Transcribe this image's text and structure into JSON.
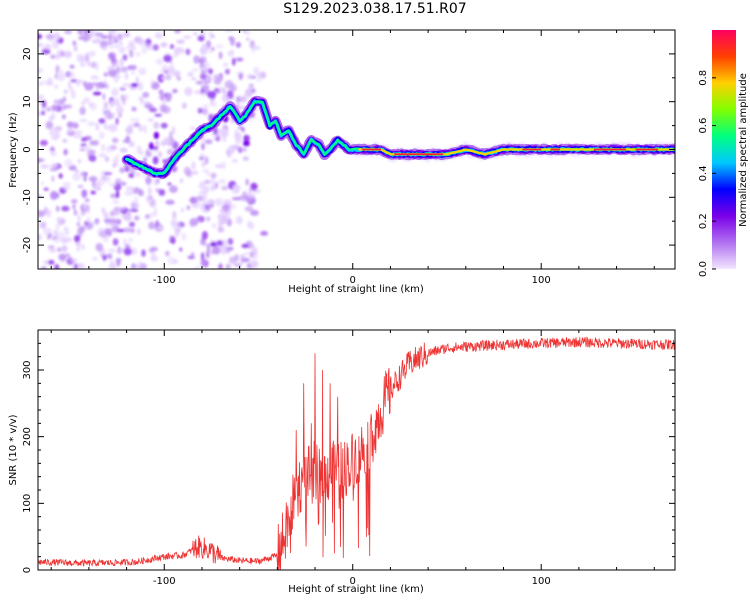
{
  "title": "S129.2023.038.17.51.R07",
  "chart_data": [
    {
      "type": "heatmap",
      "xlabel": "Height of straight line (km)",
      "ylabel": "Frequency (Hz)",
      "xlim": [
        -167,
        171
      ],
      "ylim": [
        -25,
        25
      ],
      "xticks": [
        -100,
        0,
        100
      ],
      "yticks": [
        -20,
        -10,
        0,
        10,
        20
      ],
      "colorbar": {
        "label": "Normalized spectral amplitude",
        "range": [
          0,
          1
        ],
        "ticks": [
          0.0,
          0.2,
          0.4,
          0.6,
          0.8
        ],
        "colors": [
          "#f2e6ff",
          "#b070f0",
          "#7a00e8",
          "#0000ff",
          "#00c8ff",
          "#00ff80",
          "#80ff00",
          "#ffd000",
          "#ff4000",
          "#ff0060"
        ]
      },
      "ridge": {
        "x": [
          -120,
          -110,
          -105,
          -100,
          -95,
          -90,
          -85,
          -80,
          -75,
          -70,
          -65,
          -60,
          -57,
          -52,
          -48,
          -44,
          -41,
          -38,
          -34,
          -30,
          -26,
          -22,
          -18,
          -15,
          -12,
          -8,
          -5,
          -2,
          0,
          5,
          10,
          15,
          20,
          30,
          40,
          50,
          60,
          70,
          80,
          90,
          100,
          110,
          120,
          130,
          140,
          150,
          160,
          171
        ],
        "y": [
          -2,
          -4,
          -5,
          -5,
          -2,
          0,
          2,
          4,
          5,
          7,
          9,
          6,
          7,
          10,
          10,
          5,
          6,
          3,
          4,
          1,
          -1,
          2,
          1,
          -1,
          0,
          2,
          1,
          0,
          0,
          0,
          0,
          0,
          -1,
          -1,
          -1,
          -1,
          0,
          -1,
          0,
          0,
          0,
          0,
          0,
          0,
          0,
          0,
          0,
          0
        ]
      }
    },
    {
      "type": "line",
      "xlabel": "Height of straight line (km)",
      "ylabel": "SNR (10 * v/v)",
      "xlim": [
        -167,
        171
      ],
      "ylim": [
        0,
        360
      ],
      "xticks": [
        -100,
        0,
        100
      ],
      "yticks": [
        0,
        100,
        200,
        300
      ],
      "color": "#ee3333",
      "trend": {
        "x": [
          -167,
          -140,
          -115,
          -100,
          -90,
          -82,
          -76,
          -70,
          -60,
          -50,
          -40,
          -35,
          -30,
          -25,
          -20,
          -15,
          -10,
          -5,
          0,
          5,
          10,
          15,
          20,
          25,
          30,
          40,
          50,
          60,
          80,
          100,
          120,
          140,
          171
        ],
        "y": [
          12,
          10,
          12,
          20,
          22,
          35,
          30,
          18,
          14,
          13,
          22,
          60,
          120,
          140,
          150,
          140,
          150,
          150,
          165,
          180,
          200,
          240,
          270,
          290,
          310,
          325,
          333,
          335,
          338,
          340,
          342,
          340,
          338
        ]
      },
      "spikes": {
        "x": [
          -30,
          -26,
          -22,
          -20,
          -16,
          -12,
          -8
        ],
        "y": [
          210,
          280,
          220,
          325,
          300,
          280,
          260
        ]
      }
    }
  ]
}
